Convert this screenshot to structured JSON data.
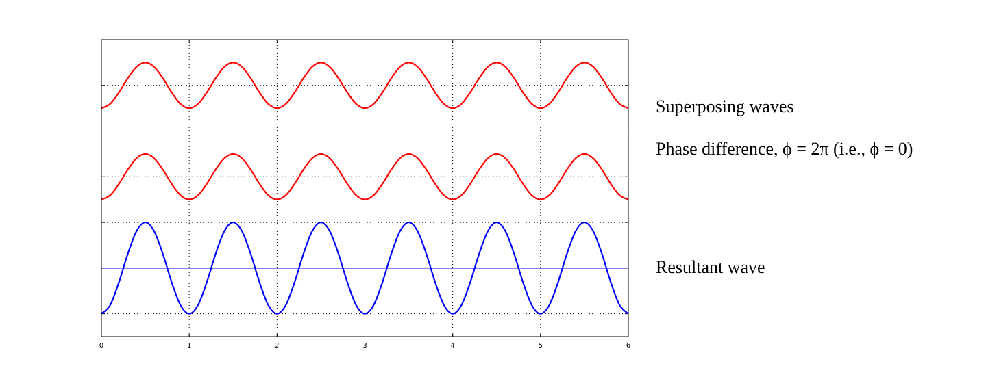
{
  "chart_data": {
    "type": "line",
    "annotations": [
      "Superposing waves",
      "Phase difference, ϕ = 2π (i.e., ϕ = 0)",
      "Resultant wave"
    ],
    "x": [
      0,
      0.1,
      0.2,
      0.3,
      0.4,
      0.5,
      0.6,
      0.7,
      0.8,
      0.9,
      1,
      1.1,
      1.2,
      1.3,
      1.4,
      1.5,
      1.6,
      1.7,
      1.8,
      1.9,
      2,
      2.1,
      2.2,
      2.3,
      2.4,
      2.5,
      2.6,
      2.7,
      2.8,
      2.9,
      3,
      3.1,
      3.2,
      3.3,
      3.4,
      3.5,
      3.6,
      3.7,
      3.8,
      3.9,
      4,
      4.1,
      4.2,
      4.3,
      4.4,
      4.5,
      4.6,
      4.7,
      4.8,
      4.9,
      5,
      5.1,
      5.2,
      5.3,
      5.4,
      5.5,
      5.6,
      5.7,
      5.8,
      5.9,
      6
    ],
    "series": [
      {
        "color": "#ff0000",
        "values": [
          4.5,
          4.595,
          4.845,
          5.155,
          5.405,
          5.5,
          5.405,
          5.155,
          4.845,
          4.595,
          4.5,
          4.595,
          4.845,
          5.155,
          5.405,
          5.5,
          5.405,
          5.155,
          4.845,
          4.595,
          4.5,
          4.595,
          4.845,
          5.155,
          5.405,
          5.5,
          5.405,
          5.155,
          4.845,
          4.595,
          4.5,
          4.595,
          4.845,
          5.155,
          5.405,
          5.5,
          5.405,
          5.155,
          4.845,
          4.595,
          4.5,
          4.595,
          4.845,
          5.155,
          5.405,
          5.5,
          5.405,
          5.155,
          4.845,
          4.595,
          4.5,
          4.595,
          4.845,
          5.155,
          5.405,
          5.5,
          5.405,
          5.155,
          4.845,
          4.595,
          4.5
        ]
      },
      {
        "color": "#ff0000",
        "values": [
          2.5,
          2.595,
          2.845,
          3.155,
          3.405,
          3.5,
          3.405,
          3.155,
          2.845,
          2.595,
          2.5,
          2.595,
          2.845,
          3.155,
          3.405,
          3.5,
          3.405,
          3.155,
          2.845,
          2.595,
          2.5,
          2.595,
          2.845,
          3.155,
          3.405,
          3.5,
          3.405,
          3.155,
          2.845,
          2.595,
          2.5,
          2.595,
          2.845,
          3.155,
          3.405,
          3.5,
          3.405,
          3.155,
          2.845,
          2.595,
          2.5,
          2.595,
          2.845,
          3.155,
          3.405,
          3.5,
          3.405,
          3.155,
          2.845,
          2.595,
          2.5,
          2.595,
          2.845,
          3.155,
          3.405,
          3.5,
          3.405,
          3.155,
          2.845,
          2.595,
          2.5
        ]
      },
      {
        "color": "#0000ff",
        "values": [
          0,
          0.191,
          0.691,
          1.309,
          1.809,
          2,
          1.809,
          1.309,
          0.691,
          0.191,
          0,
          0.191,
          0.691,
          1.309,
          1.809,
          2,
          1.809,
          1.309,
          0.691,
          0.191,
          0,
          0.191,
          0.691,
          1.309,
          1.809,
          2,
          1.809,
          1.309,
          0.691,
          0.191,
          0,
          0.191,
          0.691,
          1.309,
          1.809,
          2,
          1.809,
          1.309,
          0.691,
          0.191,
          0,
          0.191,
          0.691,
          1.309,
          1.809,
          2,
          1.809,
          1.309,
          0.691,
          0.191,
          0,
          0.191,
          0.691,
          1.309,
          1.809,
          2,
          1.809,
          1.309,
          0.691,
          0.191,
          0
        ]
      }
    ],
    "reference_line": {
      "value": 1,
      "color": "#0000ff"
    },
    "xlim": [
      0,
      6
    ],
    "xticks": [
      0,
      1,
      2,
      3,
      4,
      5,
      6
    ],
    "ylim": [
      -0.5,
      6
    ],
    "yticks": [
      0,
      1,
      2,
      3,
      4,
      5
    ],
    "ytick_labels": false,
    "grid": true
  }
}
